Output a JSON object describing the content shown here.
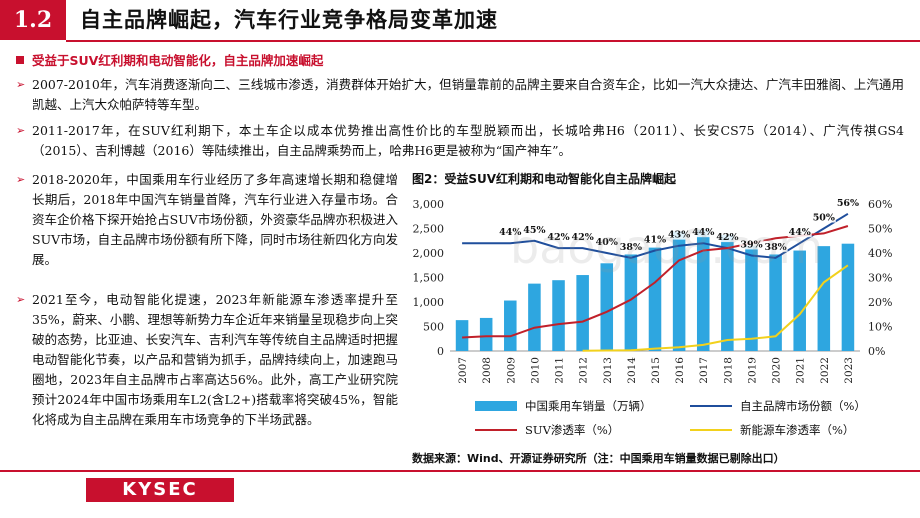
{
  "header": {
    "section_number": "1.2",
    "title": "自主品牌崛起，汽车行业竞争格局变革加速"
  },
  "subheading": "受益于SUV红利期和电动智能化，自主品牌加速崛起",
  "paragraphs": {
    "p1": "2007-2010年，汽车消费逐渐向二、三线城市渗透，消费群体开始扩大，但销量靠前的品牌主要来自合资车企，比如一汽大众捷达、广汽丰田雅阁、上汽通用凯越、上汽大众帕萨特等车型。",
    "p2": "2011-2017年，在SUV红利期下，本土车企以成本优势推出高性价比的车型脱颖而出，长城哈弗H6（2011）、长安CS75（2014）、广汽传祺GS4（2015）、吉利博越（2016）等陆续推出，自主品牌乘势而上，哈弗H6更是被称为“国产神车”。",
    "p3": "2018-2020年，中国乘用车行业经历了多年高速增长期和稳健增长期后，2018年中国汽车销量首降，汽车行业进入存量市场。合资车企价格下探开始抢占SUV市场份额，外资豪华品牌亦积极进入SUV市场，自主品牌市场份额有所下降，同时市场往新四化方向发展。",
    "p4": "2021至今，电动智能化提速，2023年新能源车渗透率提升至35%，蔚来、小鹏、理想等新势力车企近年来销量呈现稳步向上突破的态势，比亚迪、长安汽车、吉利汽车等传统自主品牌适时把握电动智能化节奏，以产品和营销为抓手，品牌持续向上，加速跑马圈地，2023年自主品牌市占率高达56%。此外，高工产业研究院预计2024年中国市场乘用车L2(含L2+)搭载率将突破45%，智能化将成为自主品牌在乘用车市场竞争的下半场武器。"
  },
  "figure": {
    "caption": "图2：受益SUV红利期和电动智能化自主品牌崛起",
    "source": "数据来源：Wind、开源证券研究所（注：中国乘用车销量数据已剔除出口）"
  },
  "watermark": "baogao8.com",
  "logo_text": "KYSEC",
  "colors": {
    "brand_red": "#c8102e",
    "bar_blue": "#2ea6e0",
    "share_line": "#1f4e9c",
    "suv_line": "#c0202a",
    "nev_line": "#f2d11c"
  },
  "chart_data": {
    "type": "bar",
    "categories": [
      "2007",
      "2008",
      "2009",
      "2010",
      "2011",
      "2012",
      "2013",
      "2014",
      "2015",
      "2016",
      "2017",
      "2018",
      "2019",
      "2020",
      "2021",
      "2022",
      "2023"
    ],
    "series": [
      {
        "name": "中国乘用车销量（万辆）",
        "type": "bar",
        "axis": "left",
        "values": [
          630,
          675,
          1030,
          1375,
          1445,
          1550,
          1790,
          1970,
          2110,
          2440,
          2470,
          2370,
          2140,
          1970,
          2050,
          2140,
          2190
        ]
      },
      {
        "name": "自主品牌市场份额（%）",
        "type": "line",
        "axis": "right",
        "values": [
          44,
          44,
          44,
          45,
          42,
          42,
          40,
          38,
          41,
          43,
          44,
          42,
          39,
          38,
          44,
          50,
          56
        ]
      },
      {
        "name": "SUV渗透率（%）",
        "type": "line",
        "axis": "right",
        "values": [
          5.5,
          6,
          6,
          9.5,
          11,
          12,
          16,
          21,
          28,
          37,
          41,
          42,
          44,
          46,
          47,
          48,
          51
        ]
      },
      {
        "name": "新能源车渗透率（%）",
        "type": "line",
        "axis": "right",
        "values": [
          0,
          0,
          0,
          0,
          0,
          0.1,
          0.2,
          0.3,
          1,
          1.5,
          2.5,
          4.5,
          5,
          6,
          15,
          28,
          35
        ]
      }
    ],
    "share_labels": [
      "44%",
      "45%",
      "42%",
      "42%",
      "40%",
      "38%",
      "41%",
      "43%",
      "44%",
      "42%",
      "39%",
      "38%",
      "44%",
      "50%",
      "56%"
    ],
    "share_label_years": [
      "2009",
      "2010",
      "2011",
      "2012",
      "2013",
      "2014",
      "2015",
      "2016",
      "2017",
      "2018",
      "2019",
      "2020",
      "2021",
      "2022",
      "2023"
    ],
    "y_left": {
      "min": 0,
      "max": 3000,
      "ticks": [
        "0",
        "500",
        "1,000",
        "1,500",
        "2,000",
        "2,500",
        "3,000"
      ]
    },
    "y_right": {
      "min": 0,
      "max": 60,
      "ticks": [
        "0%",
        "10%",
        "20%",
        "30%",
        "40%",
        "50%",
        "60%"
      ]
    },
    "legend": [
      "中国乘用车销量（万辆）",
      "自主品牌市场份额（%）",
      "SUV渗透率（%）",
      "新能源车渗透率（%）"
    ],
    "legend_position": "bottom"
  }
}
